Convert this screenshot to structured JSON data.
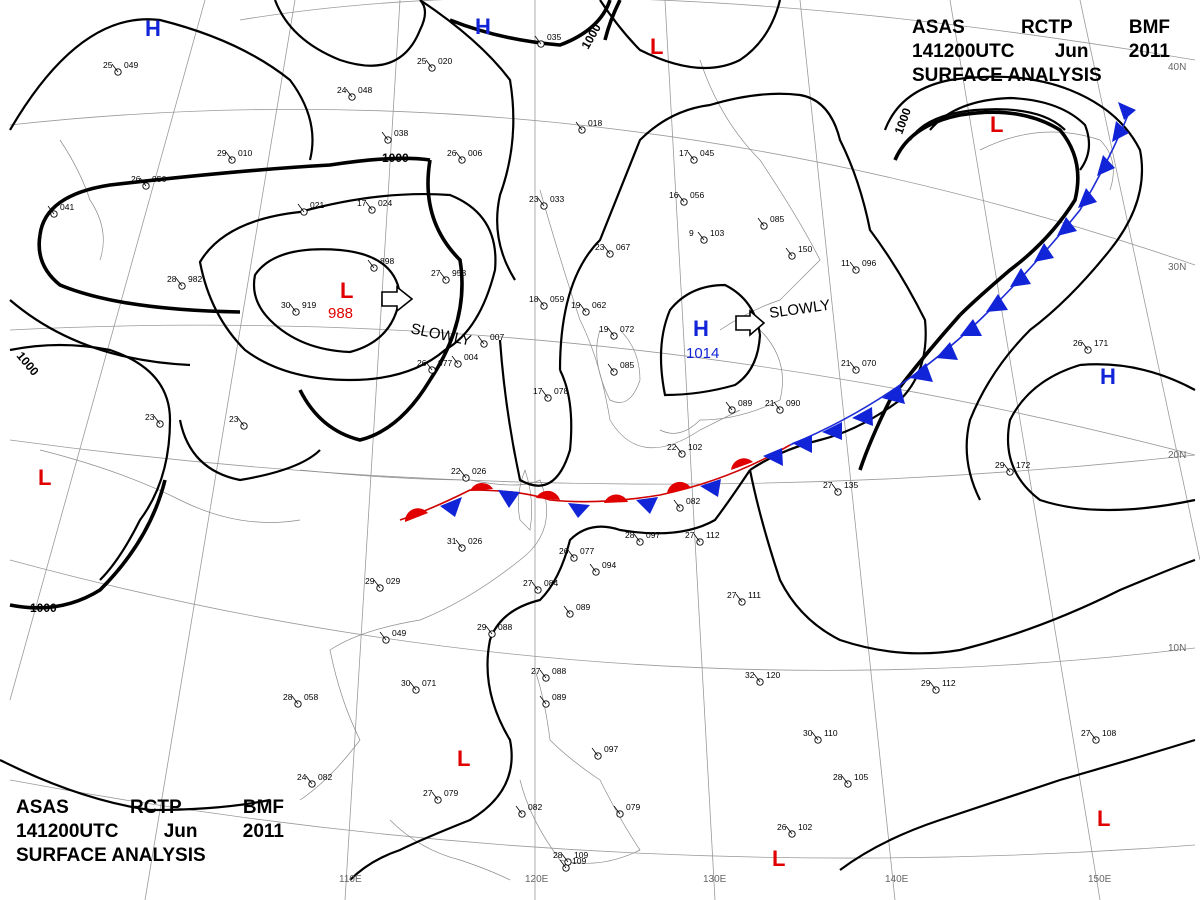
{
  "header": {
    "line1": [
      "ASAS",
      "RCTP",
      "BMF"
    ],
    "line2": [
      "141200UTC",
      "Jun",
      "2011"
    ],
    "line3": "SURFACE ANALYSIS"
  },
  "pressure_centers": [
    {
      "type": "H",
      "id": "h-nw"
    },
    {
      "type": "H",
      "id": "h-n"
    },
    {
      "type": "L",
      "id": "l-n"
    },
    {
      "type": "L",
      "id": "l-ne"
    },
    {
      "type": "L",
      "id": "l-main",
      "value": "988",
      "motion": "SLOWLY"
    },
    {
      "type": "H",
      "id": "h-japan",
      "value": "1014",
      "motion": "SLOWLY"
    },
    {
      "type": "H",
      "id": "h-e"
    },
    {
      "type": "L",
      "id": "l-w"
    },
    {
      "type": "L",
      "id": "l-scs"
    },
    {
      "type": "L",
      "id": "l-s"
    },
    {
      "type": "L",
      "id": "l-se"
    }
  ],
  "isobar_labels": [
    "1000",
    "1000",
    "1000",
    "1000",
    "1000"
  ],
  "longitude_labels": [
    "110E",
    "120E",
    "130E",
    "140E",
    "150E"
  ],
  "latitude_labels": [
    "40N",
    "30N",
    "20N",
    "10N"
  ],
  "stations": [
    {
      "t": "25",
      "p": "049"
    },
    {
      "t": "25",
      "p": "020"
    },
    {
      "t": "24",
      "p": "048"
    },
    {
      "t": "",
      "p": "038"
    },
    {
      "t": "29",
      "p": "010"
    },
    {
      "t": "26",
      "p": "006"
    },
    {
      "t": "26",
      "p": "056"
    },
    {
      "t": "",
      "p": "041"
    },
    {
      "t": "",
      "p": "021"
    },
    {
      "t": "17",
      "p": "024"
    },
    {
      "t": "28",
      "p": "982"
    },
    {
      "t": "30",
      "p": "919"
    },
    {
      "t": "",
      "p": "898"
    },
    {
      "t": "27",
      "p": "953"
    },
    {
      "t": "26",
      "p": "977"
    },
    {
      "t": "",
      "p": "035"
    },
    {
      "t": "",
      "p": "018"
    },
    {
      "t": "23",
      "p": "033"
    },
    {
      "t": "17",
      "p": "045"
    },
    {
      "t": "16",
      "p": "056"
    },
    {
      "t": "",
      "p": "085"
    },
    {
      "t": "9",
      "p": "103"
    },
    {
      "t": "23",
      "p": "067"
    },
    {
      "t": "18",
      "p": "059"
    },
    {
      "t": "19",
      "p": "062"
    },
    {
      "t": "19",
      "p": "072"
    },
    {
      "t": "",
      "p": "085"
    },
    {
      "t": "",
      "p": "004"
    },
    {
      "t": "",
      "p": "007"
    },
    {
      "t": "17",
      "p": "078"
    },
    {
      "t": "",
      "p": "150"
    },
    {
      "t": "11",
      "p": "096"
    },
    {
      "t": "21",
      "p": "070"
    },
    {
      "t": "26",
      "p": "171"
    },
    {
      "t": "23",
      "p": ""
    },
    {
      "t": "23",
      "p": ""
    },
    {
      "t": "22",
      "p": "026"
    },
    {
      "t": "31",
      "p": "026"
    },
    {
      "t": "26",
      "p": "077"
    },
    {
      "t": "28",
      "p": "097"
    },
    {
      "t": "27",
      "p": "112"
    },
    {
      "t": "",
      "p": "082"
    },
    {
      "t": "22",
      "p": "102"
    },
    {
      "t": "21",
      "p": "090"
    },
    {
      "t": "",
      "p": "089"
    },
    {
      "t": "27",
      "p": "135"
    },
    {
      "t": "29",
      "p": "172"
    },
    {
      "t": "",
      "p": "094"
    },
    {
      "t": "27",
      "p": "084"
    },
    {
      "t": "",
      "p": "089"
    },
    {
      "t": "29",
      "p": "029"
    },
    {
      "t": "",
      "p": "049"
    },
    {
      "t": "29",
      "p": "088"
    },
    {
      "t": "27",
      "p": "111"
    },
    {
      "t": "28",
      "p": "058"
    },
    {
      "t": "30",
      "p": "071"
    },
    {
      "t": "27",
      "p": "088"
    },
    {
      "t": "",
      "p": "089"
    },
    {
      "t": "32",
      "p": "120"
    },
    {
      "t": "29",
      "p": "112"
    },
    {
      "t": "30",
      "p": "110"
    },
    {
      "t": "",
      "p": "097"
    },
    {
      "t": "24",
      "p": "082"
    },
    {
      "t": "27",
      "p": "079"
    },
    {
      "t": "",
      "p": "082"
    },
    {
      "t": "",
      "p": "109"
    },
    {
      "t": "",
      "p": "079"
    },
    {
      "t": "28",
      "p": "105"
    },
    {
      "t": "27",
      "p": "108"
    },
    {
      "t": "26",
      "p": "102"
    },
    {
      "t": "28",
      "p": "109"
    }
  ]
}
